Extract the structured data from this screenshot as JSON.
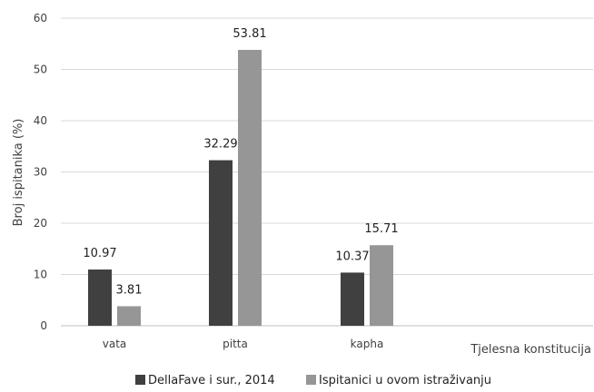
{
  "chart_data": {
    "type": "bar",
    "categories": [
      "vata",
      "pitta",
      "kapha"
    ],
    "series": [
      {
        "name": "DellaFave i sur., 2014",
        "values": [
          10.97,
          32.29,
          10.37
        ],
        "color": "#404040"
      },
      {
        "name": "Ispitanici u ovom istraživanju",
        "values": [
          3.81,
          53.81,
          15.71
        ],
        "color": "#969696"
      }
    ],
    "data_labels": [
      [
        "10.97",
        "32.29",
        "10.37"
      ],
      [
        "3.81",
        "53.81",
        "15.71"
      ]
    ],
    "yticks": [
      "0",
      "10",
      "20",
      "30",
      "40",
      "50",
      "60"
    ],
    "xlabel": "Tjelesna konstitucija",
    "ylabel": "Broj ispitanika (%)",
    "ylim": [
      0,
      60
    ],
    "grid": true,
    "legend": "bottom"
  }
}
